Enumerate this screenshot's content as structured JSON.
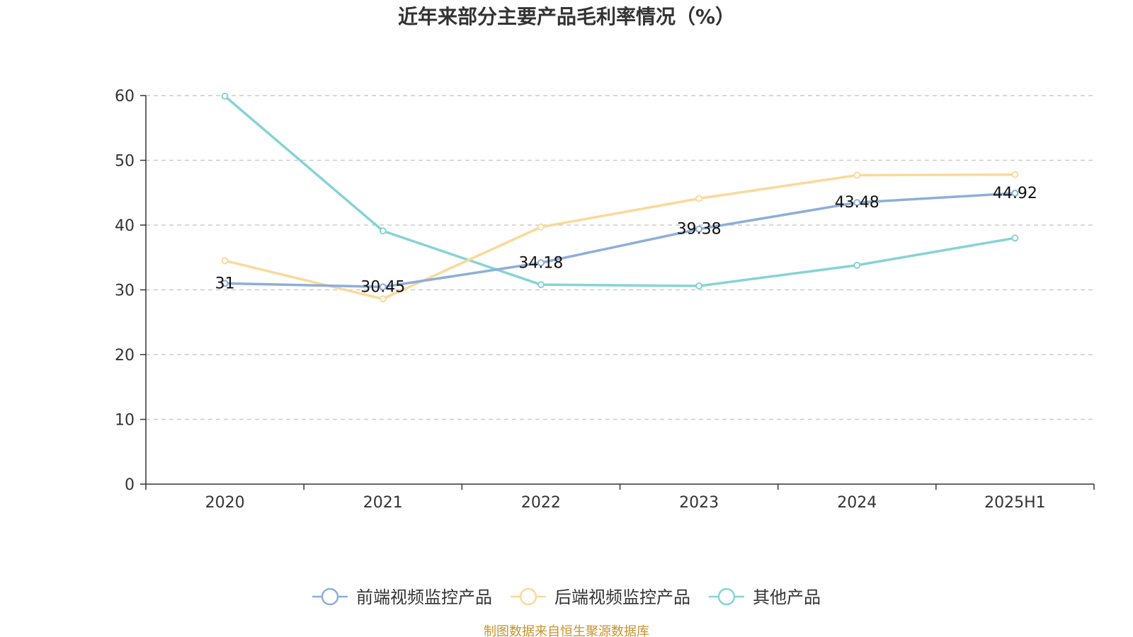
{
  "chart_data": {
    "type": "line",
    "title": "近年来部分主要产品毛利率情况（%）",
    "xlabel": "",
    "ylabel": "",
    "categories": [
      "2020",
      "2021",
      "2022",
      "2023",
      "2024",
      "2025H1"
    ],
    "ylim": [
      0,
      60
    ],
    "yticks": [
      0,
      10,
      20,
      30,
      40,
      50,
      60
    ],
    "grid": true,
    "legend_position": "bottom",
    "series": [
      {
        "name": "前端视频监控产品",
        "color": "#8eaed8",
        "values": [
          31,
          30.45,
          34.18,
          39.38,
          43.48,
          44.92
        ],
        "labels": [
          "31",
          "30.45",
          "34.18",
          "39.38",
          "43.48",
          "44.92"
        ]
      },
      {
        "name": "后端视频监控产品",
        "color": "#fbd99a",
        "values": [
          34.5,
          28.6,
          39.7,
          44.1,
          47.7,
          47.8
        ]
      },
      {
        "name": "其他产品",
        "color": "#86d3d6",
        "values": [
          59.9,
          39.1,
          30.8,
          30.6,
          33.8,
          38
        ]
      }
    ],
    "source": "制图数据来自恒生聚源数据库"
  }
}
